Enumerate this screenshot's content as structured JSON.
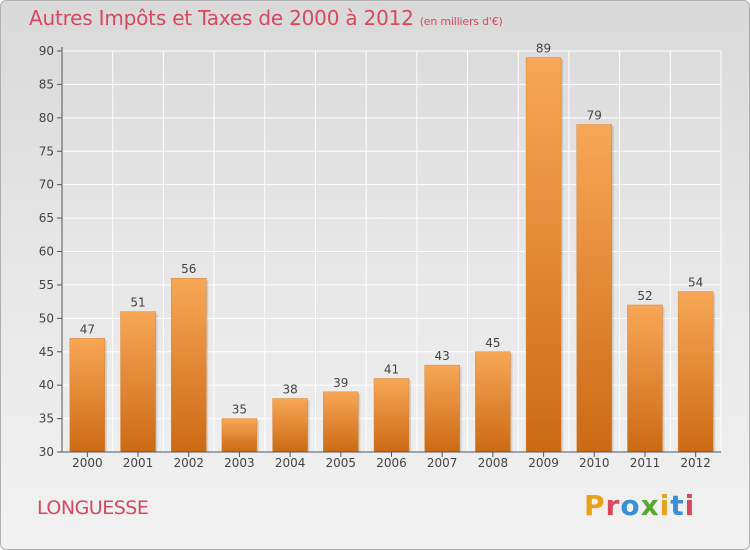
{
  "title": "Autres Impôts et Taxes de 2000 à 2012",
  "subtitle": "(en milliers d'€)",
  "commune": "LONGUESSE",
  "logo": {
    "letters": [
      "P",
      "r",
      "o",
      "x",
      "i",
      "t",
      "i"
    ],
    "colors": [
      "#e8a21a",
      "#d8485f",
      "#3a8fd6",
      "#5aa832",
      "#e8a21a",
      "#3a8fd6",
      "#d8485f"
    ]
  },
  "colors": {
    "bar_top": "#f7a757",
    "bar_bottom": "#cc6a14",
    "accent": "#d8485f",
    "axis": "#555555"
  },
  "chart_data": {
    "type": "bar",
    "title": "Autres Impôts et Taxes de 2000 à 2012",
    "subtitle": "(en milliers d'€)",
    "categories": [
      "2000",
      "2001",
      "2002",
      "2003",
      "2004",
      "2005",
      "2006",
      "2007",
      "2008",
      "2009",
      "2010",
      "2011",
      "2012"
    ],
    "values": [
      47,
      51,
      56,
      35,
      38,
      39,
      41,
      43,
      45,
      89,
      79,
      52,
      54
    ],
    "ylim": [
      30,
      90
    ],
    "yticks": [
      30,
      35,
      40,
      45,
      50,
      55,
      60,
      65,
      70,
      75,
      80,
      85,
      90
    ],
    "grid": true,
    "data_labels": true
  }
}
